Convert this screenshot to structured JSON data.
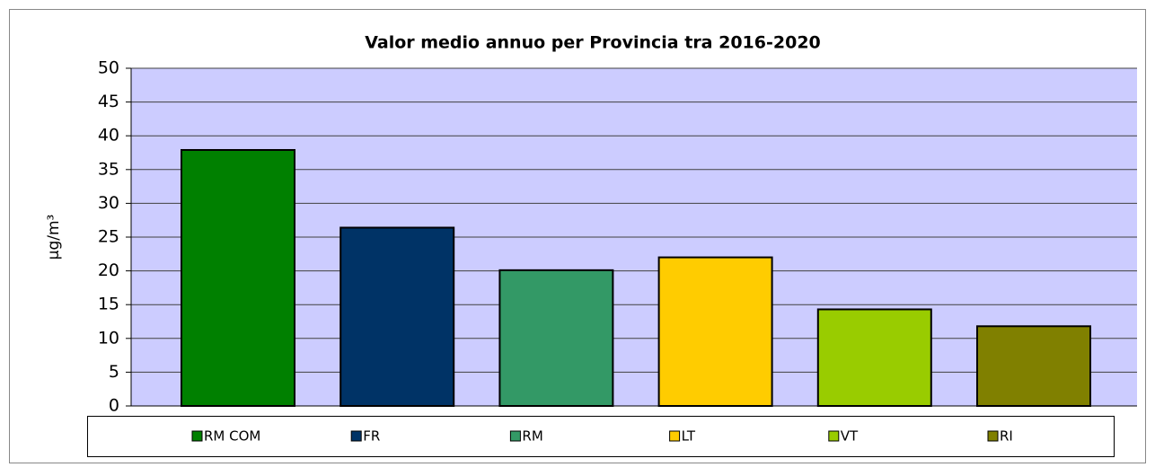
{
  "chart_data": {
    "type": "bar",
    "title": "Valor medio annuo per Provincia tra 2016-2020",
    "y_label": "μg/m³",
    "series": [
      {
        "name": "RM COM",
        "color": "#008000",
        "values": [
          37.9
        ]
      },
      {
        "name": "FR",
        "color": "#003366",
        "values": [
          26.4
        ]
      },
      {
        "name": "RM",
        "color": "#339966",
        "values": [
          20.1
        ]
      },
      {
        "name": "LT",
        "color": "#ffcc00",
        "values": [
          22.0
        ]
      },
      {
        "name": "VT",
        "color": "#99cc00",
        "values": [
          14.3
        ]
      },
      {
        "name": "RI",
        "color": "#808000",
        "values": [
          11.8
        ]
      }
    ],
    "ylim": [
      0,
      50
    ],
    "yticks": [
      0,
      5,
      10,
      15,
      20,
      25,
      30,
      35,
      40,
      45,
      50
    ],
    "grid": true,
    "legend": "bottom"
  }
}
